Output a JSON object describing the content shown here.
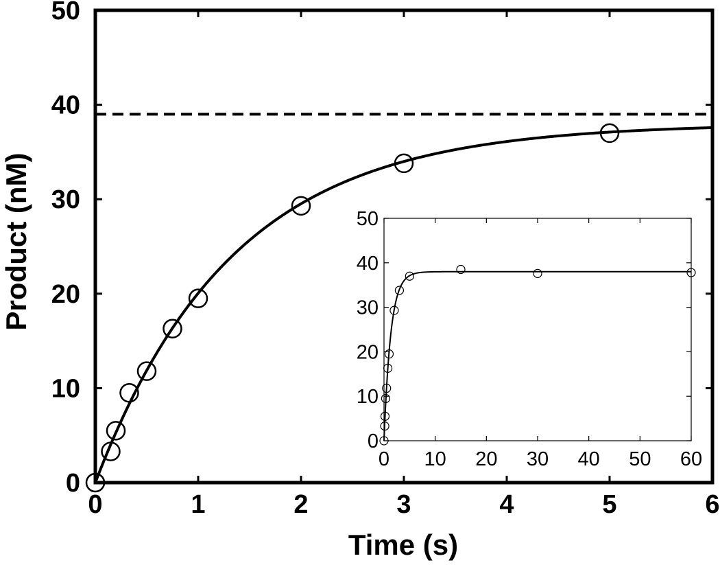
{
  "chart_data": [
    {
      "id": "main",
      "type": "scatter",
      "xlabel": "Time (s)",
      "ylabel": "Product (nM)",
      "xlim": [
        0,
        6
      ],
      "ylim": [
        0,
        50
      ],
      "x_ticks": [
        "0",
        "1",
        "2",
        "3",
        "4",
        "5",
        "6"
      ],
      "y_ticks": [
        "0",
        "10",
        "20",
        "30",
        "40",
        "50"
      ],
      "series": [
        {
          "name": "data",
          "x": [
            0.0,
            0.15,
            0.2,
            0.33,
            0.5,
            0.75,
            1.0,
            2.0,
            3.0,
            5.0
          ],
          "y": [
            0.0,
            3.3,
            5.5,
            9.5,
            11.8,
            16.3,
            19.5,
            29.3,
            33.8,
            37.0
          ]
        },
        {
          "name": "fit",
          "type": "line",
          "amplitude": 38,
          "rate": 0.75
        },
        {
          "name": "plateau",
          "type": "dashed-line",
          "y": 39
        }
      ]
    },
    {
      "id": "inset",
      "type": "scatter",
      "xlabel": "",
      "ylabel": "",
      "xlim": [
        0,
        60
      ],
      "ylim": [
        0,
        50
      ],
      "x_ticks": [
        "0",
        "10",
        "20",
        "30",
        "40",
        "50",
        "60"
      ],
      "y_ticks": [
        "0",
        "10",
        "20",
        "30",
        "40",
        "50"
      ],
      "series": [
        {
          "name": "data",
          "x": [
            0.0,
            0.15,
            0.2,
            0.33,
            0.5,
            0.75,
            1.0,
            2.0,
            3.0,
            5.0,
            15.0,
            30.0,
            60.0
          ],
          "y": [
            0.0,
            3.3,
            5.5,
            9.5,
            11.8,
            16.3,
            19.5,
            29.3,
            33.8,
            37.0,
            38.5,
            37.6,
            37.8
          ]
        },
        {
          "name": "fit",
          "type": "line",
          "amplitude": 38,
          "rate": 0.75
        }
      ]
    }
  ]
}
